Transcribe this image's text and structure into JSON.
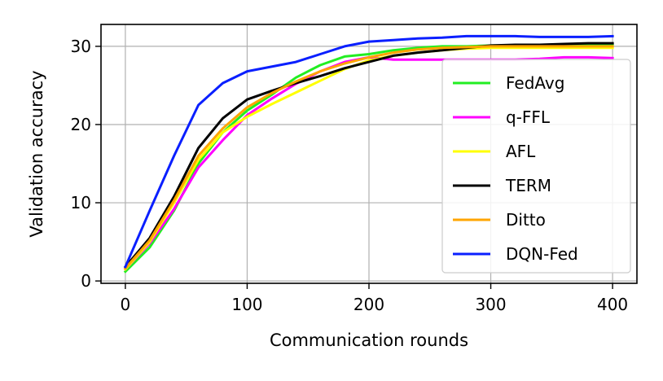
{
  "chart_data": {
    "type": "line",
    "title": "",
    "xlabel": "Communication rounds",
    "ylabel": "Validation accuracy",
    "xlim": [
      -20,
      420
    ],
    "ylim": [
      -0.3,
      32.8
    ],
    "xticks": [
      0,
      100,
      200,
      300,
      400
    ],
    "yticks": [
      0,
      10,
      20,
      30
    ],
    "grid": true,
    "legend_position": "lower-right",
    "x": [
      0,
      20,
      40,
      60,
      80,
      100,
      120,
      140,
      160,
      180,
      200,
      220,
      240,
      260,
      280,
      300,
      320,
      340,
      360,
      380,
      400
    ],
    "series": [
      {
        "name": "FedAvg",
        "color": "#22ee22",
        "values": [
          1.2,
          4.3,
          9.0,
          15.0,
          19.0,
          21.8,
          23.8,
          26.0,
          27.6,
          28.7,
          29.0,
          29.5,
          29.8,
          30.0,
          30.0,
          30.1,
          30.1,
          30.0,
          30.1,
          30.2,
          30.3
        ]
      },
      {
        "name": "q-FFL",
        "color": "#ff00ff",
        "values": [
          1.5,
          4.8,
          9.2,
          14.5,
          18.0,
          21.2,
          23.3,
          25.2,
          26.8,
          28.0,
          28.6,
          28.3,
          28.3,
          28.3,
          28.3,
          28.3,
          28.3,
          28.4,
          28.6,
          28.6,
          28.5
        ]
      },
      {
        "name": "AFL",
        "color": "#ffff00",
        "values": [
          1.5,
          5.0,
          10.0,
          15.5,
          19.0,
          21.0,
          22.6,
          24.1,
          25.6,
          27.1,
          28.2,
          28.8,
          29.2,
          29.5,
          29.7,
          29.8,
          29.8,
          29.8,
          29.8,
          29.8,
          29.8
        ]
      },
      {
        "name": "TERM",
        "color": "#000000",
        "values": [
          1.8,
          5.5,
          10.8,
          17.0,
          20.8,
          23.2,
          24.3,
          25.3,
          26.2,
          27.2,
          28.0,
          28.8,
          29.2,
          29.5,
          29.8,
          30.1,
          30.2,
          30.2,
          30.3,
          30.4,
          30.4
        ]
      },
      {
        "name": "Ditto",
        "color": "#ffa500",
        "values": [
          1.6,
          5.2,
          10.3,
          16.0,
          19.5,
          22.2,
          24.0,
          25.5,
          26.8,
          27.8,
          28.6,
          29.2,
          29.6,
          29.8,
          29.9,
          30.0,
          30.0,
          30.0,
          30.0,
          30.0,
          30.0
        ]
      },
      {
        "name": "DQN-Fed",
        "color": "#0a1fff",
        "values": [
          1.8,
          9.0,
          16.0,
          22.5,
          25.3,
          26.8,
          27.4,
          28.0,
          29.0,
          30.0,
          30.6,
          30.8,
          31.0,
          31.1,
          31.3,
          31.3,
          31.3,
          31.2,
          31.2,
          31.2,
          31.3
        ]
      }
    ]
  }
}
